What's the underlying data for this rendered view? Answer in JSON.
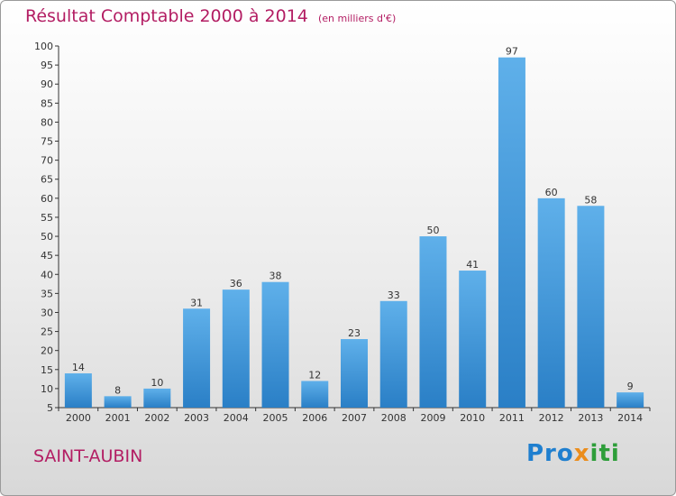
{
  "title": "Résultat Comptable 2000 à 2014",
  "subtitle": "(en milliers d'€)",
  "place": "SAINT-AUBIN",
  "logo": {
    "part1": "Pro",
    "part2": "x",
    "part3": "iti"
  },
  "colors": {
    "title": "#b31d63",
    "bar_light": "#5fb0ea",
    "bar_dark": "#2a7fc6",
    "axis": "#333333"
  },
  "chart_data": {
    "type": "bar",
    "title": "Résultat Comptable 2000 à 2014",
    "ylabel": "",
    "xlabel": "",
    "categories": [
      "2000",
      "2001",
      "2002",
      "2003",
      "2004",
      "2005",
      "2006",
      "2007",
      "2008",
      "2009",
      "2010",
      "2011",
      "2012",
      "2013",
      "2014"
    ],
    "values": [
      14,
      8,
      10,
      31,
      36,
      38,
      12,
      23,
      33,
      50,
      41,
      97,
      60,
      58,
      9
    ],
    "ylim": [
      5,
      100
    ],
    "yticks": [
      5,
      10,
      15,
      20,
      25,
      30,
      35,
      40,
      45,
      50,
      55,
      60,
      65,
      70,
      75,
      80,
      85,
      90,
      95,
      100
    ],
    "grid": false,
    "legend": "none"
  }
}
